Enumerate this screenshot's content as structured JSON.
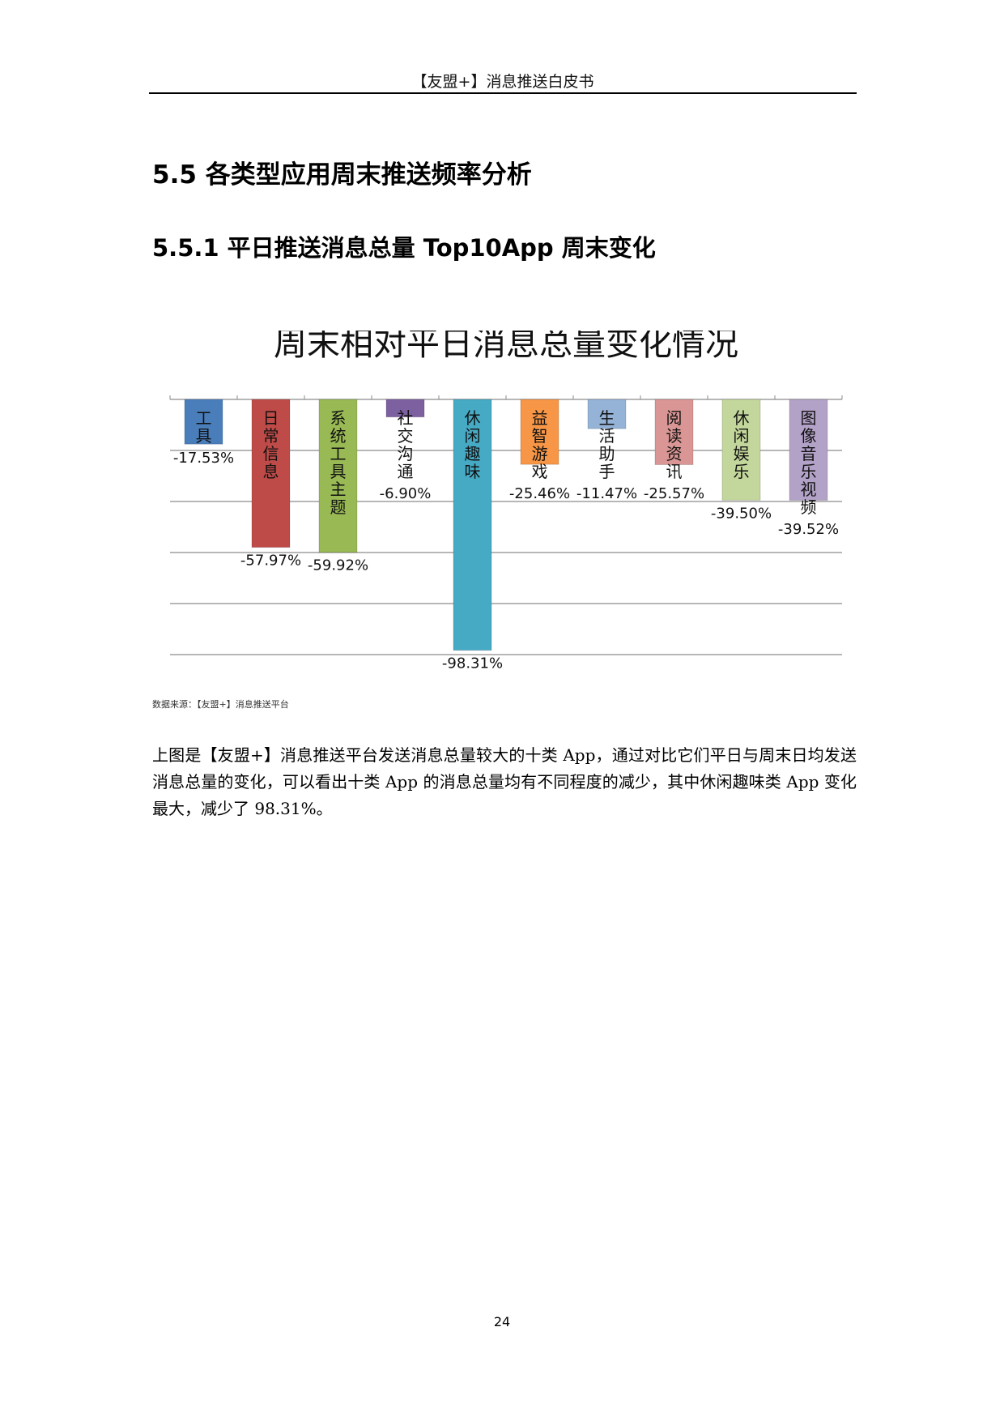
{
  "header": {
    "title": "【友盟+】消息推送白皮书"
  },
  "section": {
    "heading": "5.5 各类型应用周末推送频率分析",
    "subheading": "5.5.1 平日推送消息总量 Top10App 周末变化"
  },
  "chart_data": {
    "type": "bar",
    "title": "周末相对平日消息总量变化情况",
    "categories": [
      "工具",
      "日常信息",
      "系统工具主题",
      "社交沟通",
      "休闲趣味",
      "益智游戏",
      "生活助手",
      "阅读资讯",
      "休闲娱乐",
      "图像音乐视频"
    ],
    "values": [
      -17.53,
      -57.97,
      -59.92,
      -6.9,
      -98.31,
      -25.46,
      -11.47,
      -25.57,
      -39.5,
      -39.52
    ],
    "value_labels": [
      "-17.53%",
      "-57.97%",
      "-59.92%",
      "-6.90%",
      "-98.31%",
      "-25.46%",
      "-11.47%",
      "-25.57%",
      "-39.50%",
      "-39.52%"
    ],
    "colors": [
      "#4a7ebb",
      "#be4b48",
      "#98b954",
      "#7d60a0",
      "#46aac5",
      "#f79646",
      "#95b3d7",
      "#d99694",
      "#c3d69b",
      "#b3a2c7"
    ],
    "ylim": [
      -100,
      0
    ],
    "gridlines": [
      0,
      -20,
      -40,
      -60,
      -80,
      -100
    ],
    "grid": true,
    "legend": "none"
  },
  "source_note": "数据来源：【友盟+】消息推送平台",
  "paragraph": "上图是【友盟+】消息推送平台发送消息总量较大的十类 App，通过对比它们平日与周末日均发送消息总量的变化，可以看出十类 App 的消息总量均有不同程度的减少，其中休闲趣味类 App 变化最大，减少了 98.31%。",
  "page_number": "24"
}
